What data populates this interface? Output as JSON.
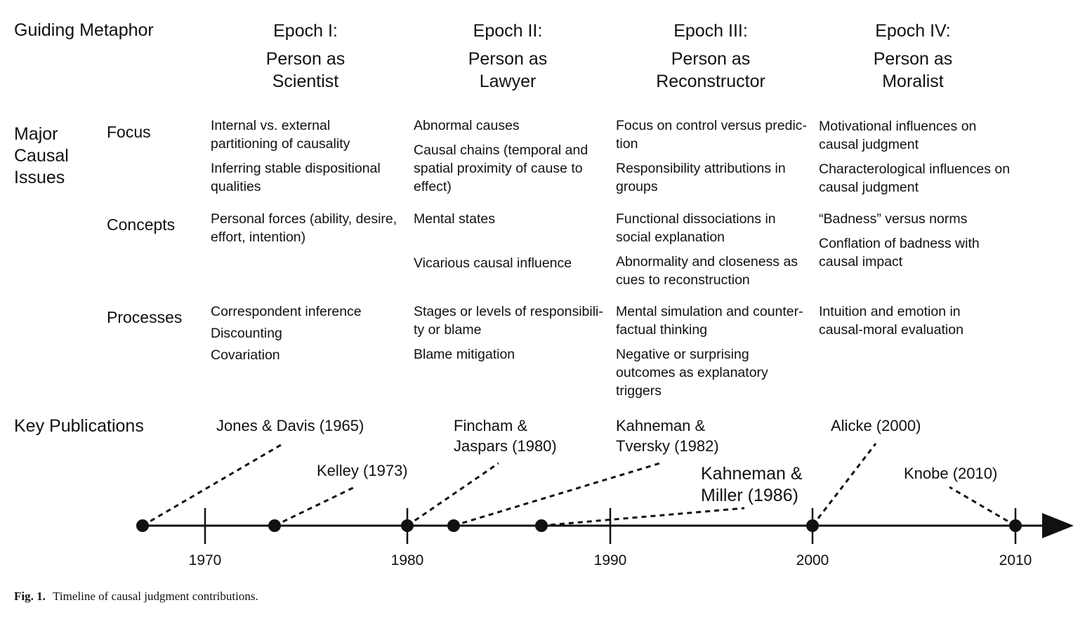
{
  "header": {
    "guiding_metaphor": "Guiding Metaphor",
    "epochs": [
      {
        "label": "Epoch I:",
        "line1": "Person as",
        "line2": "Scientist"
      },
      {
        "label": "Epoch II:",
        "line1": "Person as",
        "line2": "Lawyer"
      },
      {
        "label": "Epoch III:",
        "line1": "Person as",
        "line2": "Reconstructor"
      },
      {
        "label": "Epoch IV:",
        "line1": "Person as",
        "line2": "Moralist"
      }
    ]
  },
  "issues": {
    "label": "Major\nCausal\nIssues",
    "rows": [
      {
        "label": "Focus",
        "cells": [
          [
            "Internal vs. external\npartitioning of causality",
            "Inferring stable dispositional\nqualities"
          ],
          [
            "Abnormal causes",
            "Causal chains (temporal and\nspatial proximity of cause to\neffect)"
          ],
          [
            "Focus on control versus predic-\ntion",
            "Responsibility attributions in\ngroups"
          ],
          [
            "Motivational influences on\ncausal judgment",
            "Characterological influences on\ncausal judgment"
          ]
        ]
      },
      {
        "label": "Concepts",
        "cells": [
          [
            "Personal forces (ability, desire,\neffort, intention)"
          ],
          [
            "Mental states",
            "Vicarious causal influence"
          ],
          [
            "Functional dissociations in\nsocial explanation",
            "Abnormality and closeness as\ncues to reconstruction"
          ],
          [
            "“Badness” versus norms",
            "Conflation of badness with\ncausal impact"
          ]
        ]
      },
      {
        "label": "Processes",
        "cells": [
          [
            "Correspondent inference",
            "Discounting",
            "Covariation"
          ],
          [
            "Stages or levels of responsibili-\nty or blame",
            "Blame mitigation"
          ],
          [
            "Mental simulation and counter-\nfactual thinking",
            "Negative or surprising\noutcomes as explanatory\ntriggers"
          ],
          [
            "Intuition and emotion in\ncausal-moral evaluation"
          ]
        ]
      }
    ]
  },
  "publications": {
    "label": "Key Publications",
    "items": [
      {
        "text": "Jones & Davis (1965)",
        "year": 1965
      },
      {
        "text": "Kelley (1973)",
        "year": 1973
      },
      {
        "text": "Fincham &\nJaspars (1980)",
        "year": 1980
      },
      {
        "text": "Kahneman &\nTversky (1982)",
        "year": 1982
      },
      {
        "text": "Kahneman &\nMiller (1986)",
        "year": 1986
      },
      {
        "text": "Alicke (2000)",
        "year": 2000
      },
      {
        "text": "Knobe (2010)",
        "year": 2010
      }
    ]
  },
  "timeline": {
    "ticks": [
      "1970",
      "1980",
      "1990",
      "2000",
      "2010"
    ]
  },
  "caption": {
    "label": "Fig. 1.",
    "text": "Timeline of causal judgment contributions."
  }
}
